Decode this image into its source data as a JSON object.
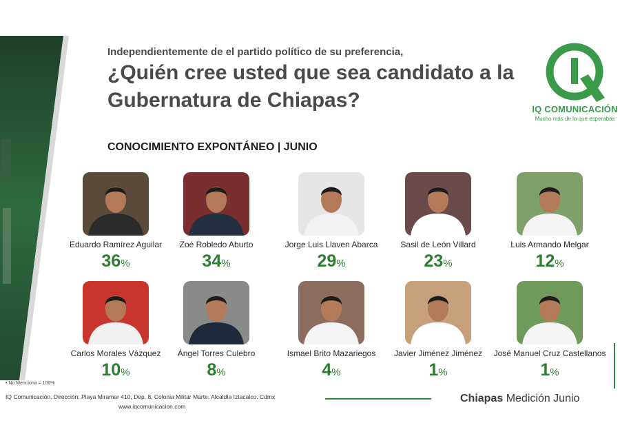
{
  "header": {
    "subtitle": "Independientemente de el partido político de su preferencia,",
    "title": "¿Quién cree usted que sea candidato a la Gubernatura de Chiapas?"
  },
  "logo": {
    "name": "IQ COMUNICACIÓN",
    "tagline": "Mucho más de lo que esperabas",
    "color": "#3a9a4a"
  },
  "section_title": "CONOCIMIENTO EXPONTÁNEO  | JUNIO",
  "percent_sign": "%",
  "chart_data": {
    "type": "table",
    "categories": [
      "Eduardo Ramírez Aguilar",
      "Zoé Robledo Aburto",
      "Jorge Luis Llaven Abarca",
      "Sasil de León Villard",
      "Luis Armando Melgar",
      "Carlos Morales Vázquez",
      "Ángel Torres Culebro",
      "Ismael Brito Mazariegos",
      "Javier Jiménez Jiménez",
      "José Manuel Cruz Castellanos"
    ],
    "values": [
      36,
      34,
      29,
      23,
      12,
      10,
      8,
      4,
      1,
      1
    ]
  },
  "footer": {
    "note": "• No Menciona = 100%",
    "address": "IQ Comunicación. Dirección: Playa Miramar 410, Dep. 8, Colonia Militar Marte. Alcaldía Iztacalco. Cdmx",
    "website": "www.iqcomunicacion.com",
    "region": "Chiapas",
    "edition": "Medición Junio"
  },
  "colors": {
    "accent_green": "#2e7d32",
    "title_gray": "#4a4a4a"
  }
}
